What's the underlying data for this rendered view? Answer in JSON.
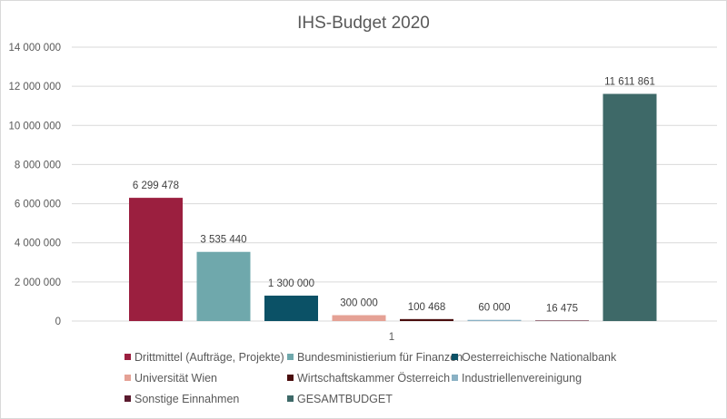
{
  "chart_data": {
    "type": "bar",
    "title": "IHS-Budget 2020",
    "categories": [
      "1"
    ],
    "xlabel": "",
    "ylabel": "",
    "ylim": [
      0,
      14000000
    ],
    "yticks": [
      0,
      2000000,
      4000000,
      6000000,
      8000000,
      10000000,
      12000000,
      14000000
    ],
    "ytick_labels": [
      "0",
      "2 000 000",
      "4 000 000",
      "6 000 000",
      "8 000 000",
      "10 000 000",
      "12 000 000",
      "14 000 000"
    ],
    "grid": true,
    "legend_position": "bottom",
    "series": [
      {
        "name": "Drittmittel (Aufträge, Projekte)",
        "value": 6299478,
        "label": "6 299 478",
        "color": "#9b1f3f"
      },
      {
        "name": "Bundesministierium für Finanzen",
        "value": 3535440,
        "label": "3 535 440",
        "color": "#6fa8ac"
      },
      {
        "name": "Oesterreichische Nationalbank",
        "value": 1300000,
        "label": "1 300 000",
        "color": "#0b5166"
      },
      {
        "name": "Universität Wien",
        "value": 300000,
        "label": "300 000",
        "color": "#e5a195"
      },
      {
        "name": "Wirtschaftskammer Österreich",
        "value": 100468,
        "label": "100 468",
        "color": "#4a0d0d"
      },
      {
        "name": "Industriellenvereinigung",
        "value": 60000,
        "label": "60 000",
        "color": "#8ab1c4"
      },
      {
        "name": "Sonstige Einnahmen",
        "value": 16475,
        "label": "16 475",
        "color": "#5a1a2e"
      },
      {
        "name": "GESAMTBUDGET",
        "value": 11611861,
        "label": "11 611 861",
        "color": "#3e6968"
      }
    ]
  }
}
